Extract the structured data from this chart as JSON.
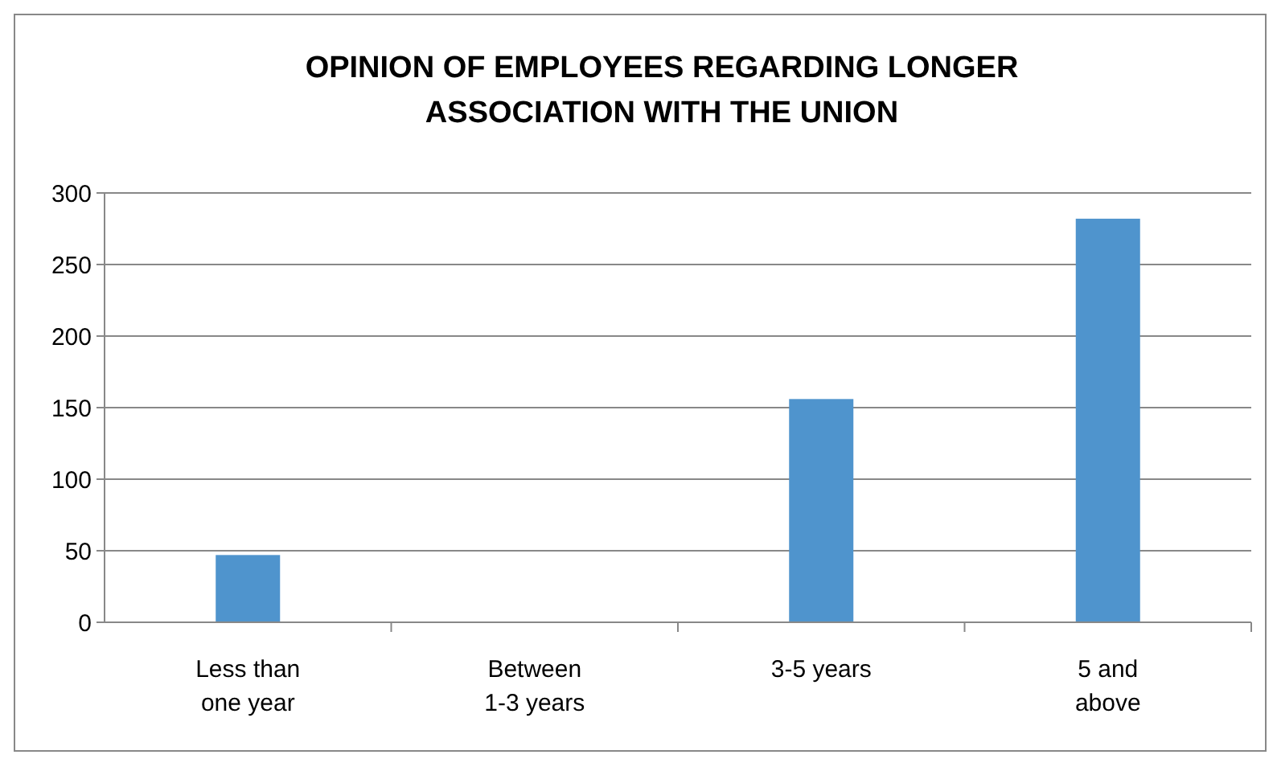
{
  "chart_data": {
    "type": "bar",
    "title": "OPINION OF EMPLOYEES REGARDING LONGER ASSOCIATION WITH THE UNION",
    "categories": [
      "Less than one year",
      "Between 1-3 years",
      "3-5 years",
      "5 and above"
    ],
    "values": [
      47,
      0,
      156,
      282
    ],
    "color": "#4f94cd",
    "ylim": [
      0,
      300
    ],
    "yticks": [
      0,
      50,
      100,
      150,
      200,
      250,
      300
    ],
    "grid": "y"
  }
}
